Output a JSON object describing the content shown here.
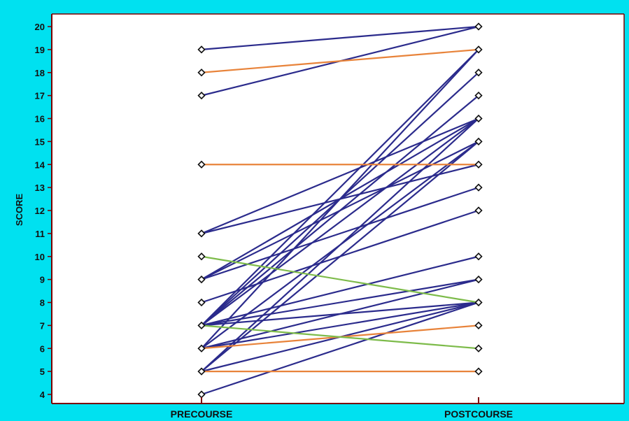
{
  "chart_data": {
    "type": "line",
    "title": "",
    "xlabel": "",
    "ylabel": "SCORE",
    "categories": [
      "PRECOURSE",
      "POSTCOURSE"
    ],
    "ylim": [
      4,
      20
    ],
    "yticks": [
      4,
      5,
      6,
      7,
      8,
      9,
      10,
      11,
      12,
      13,
      14,
      15,
      16,
      17,
      18,
      19,
      20
    ],
    "grid": false,
    "colors": {
      "improved": "#2b2b8c",
      "unchanged": "#e8833a",
      "declined": "#7dbb4a",
      "background": "#00e1f0",
      "plot_area": "#ffffff",
      "axis": "#7a0000"
    },
    "series": [
      {
        "group": "improved",
        "values": [
          19,
          20
        ]
      },
      {
        "group": "improved",
        "values": [
          17,
          20
        ]
      },
      {
        "group": "improved",
        "values": [
          11,
          16
        ]
      },
      {
        "group": "improved",
        "values": [
          11,
          14
        ]
      },
      {
        "group": "improved",
        "values": [
          9,
          16
        ]
      },
      {
        "group": "improved",
        "values": [
          9,
          15
        ]
      },
      {
        "group": "improved",
        "values": [
          9,
          13
        ]
      },
      {
        "group": "improved",
        "values": [
          8,
          12
        ]
      },
      {
        "group": "improved",
        "values": [
          7,
          19
        ]
      },
      {
        "group": "improved",
        "values": [
          7,
          18
        ]
      },
      {
        "group": "improved",
        "values": [
          7,
          17
        ]
      },
      {
        "group": "improved",
        "values": [
          7,
          16
        ]
      },
      {
        "group": "improved",
        "values": [
          7,
          10
        ]
      },
      {
        "group": "improved",
        "values": [
          7,
          9
        ]
      },
      {
        "group": "improved",
        "values": [
          7,
          8
        ]
      },
      {
        "group": "improved",
        "values": [
          6,
          19
        ]
      },
      {
        "group": "improved",
        "values": [
          6,
          15
        ]
      },
      {
        "group": "improved",
        "values": [
          6,
          9
        ]
      },
      {
        "group": "improved",
        "values": [
          6,
          8
        ]
      },
      {
        "group": "improved",
        "values": [
          5,
          16
        ]
      },
      {
        "group": "improved",
        "values": [
          5,
          15
        ]
      },
      {
        "group": "improved",
        "values": [
          5,
          8
        ]
      },
      {
        "group": "improved",
        "values": [
          4,
          8
        ]
      },
      {
        "group": "unchanged",
        "values": [
          18,
          19
        ]
      },
      {
        "group": "unchanged",
        "values": [
          14,
          14
        ]
      },
      {
        "group": "unchanged",
        "values": [
          6,
          7
        ]
      },
      {
        "group": "unchanged",
        "values": [
          5,
          5
        ]
      },
      {
        "group": "declined",
        "values": [
          10,
          8
        ]
      },
      {
        "group": "declined",
        "values": [
          7,
          6
        ]
      }
    ],
    "points": [
      {
        "category": "PRECOURSE",
        "values": [
          19,
          18,
          17,
          14,
          11,
          10,
          9,
          8,
          7,
          6,
          5,
          4
        ]
      },
      {
        "category": "POSTCOURSE",
        "values": [
          20,
          19,
          18,
          17,
          16,
          15,
          14,
          13,
          12,
          10,
          9,
          8,
          7,
          6,
          5
        ]
      }
    ]
  }
}
